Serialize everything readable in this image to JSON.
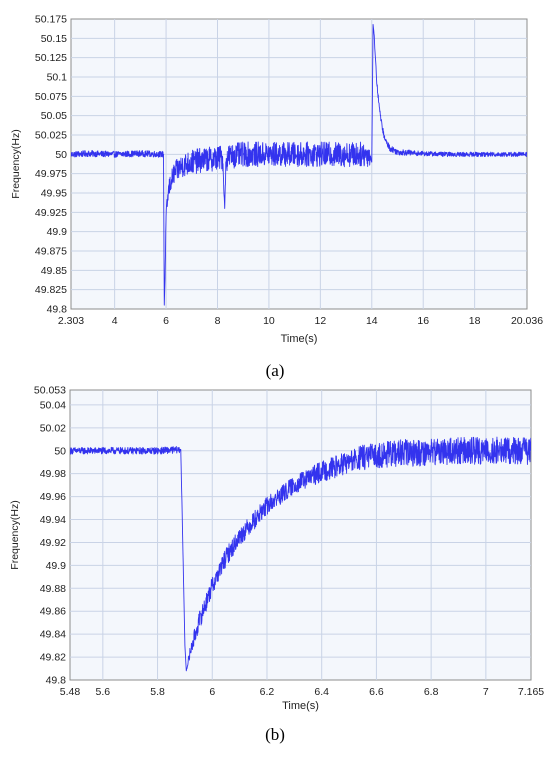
{
  "chart_data": [
    {
      "type": "line",
      "panel_label": "(a)",
      "xlabel": "Time(s)",
      "ylabel": "Frequency(Hz)",
      "xlim": [
        2.303,
        20.036
      ],
      "ylim": [
        49.8,
        50.175
      ],
      "xticks": [
        2.303,
        4,
        6,
        8,
        10,
        12,
        14,
        16,
        18,
        20.036
      ],
      "xtick_labels": [
        "2.303",
        "4",
        "6",
        "8",
        "10",
        "12",
        "14",
        "16",
        "18",
        "20.036"
      ],
      "yticks": [
        49.8,
        49.825,
        49.85,
        49.875,
        49.9,
        49.925,
        49.95,
        49.975,
        50,
        50.025,
        50.05,
        50.075,
        50.1,
        50.125,
        50.15,
        50.175
      ],
      "ytick_labels": [
        "49.8",
        "49.825",
        "49.85",
        "49.875",
        "49.9",
        "49.925",
        "49.95",
        "49.975",
        "50",
        "50.025",
        "50.05",
        "50.075",
        "50.1",
        "50.125",
        "50.15",
        "50.175"
      ],
      "grid": true,
      "series": [
        {
          "color": "#3333ee",
          "x": [
            2.303,
            3.0,
            4.0,
            5.0,
            5.9,
            5.93,
            5.96,
            6.0,
            6.1,
            6.3,
            6.6,
            7.0,
            7.5,
            8.0,
            8.2,
            8.28,
            8.33,
            8.4,
            9.0,
            10.0,
            11.0,
            12.0,
            13.0,
            13.9,
            14.0,
            14.05,
            14.1,
            14.2,
            14.35,
            14.5,
            14.7,
            15.0,
            16.0,
            17.0,
            18.0,
            19.0,
            20.036
          ],
          "y": [
            50.0,
            50.001,
            50.0,
            50.001,
            50.0,
            49.805,
            49.84,
            49.92,
            49.955,
            49.975,
            49.985,
            49.99,
            49.993,
            49.995,
            49.996,
            49.93,
            49.99,
            49.997,
            50.0,
            50.0,
            50.0,
            50.0,
            50.0,
            50.0,
            49.99,
            50.168,
            50.15,
            50.09,
            50.045,
            50.02,
            50.008,
            50.003,
            50.001,
            50.0,
            50.0,
            50.0,
            50.0
          ],
          "noise_amplitude": [
            0.004,
            0.004,
            0.004,
            0.004,
            0.004,
            0.0,
            0.004,
            0.008,
            0.012,
            0.014,
            0.015,
            0.016,
            0.016,
            0.016,
            0.016,
            0.0,
            0.016,
            0.016,
            0.016,
            0.016,
            0.016,
            0.016,
            0.016,
            0.016,
            0.0,
            0.0,
            0.004,
            0.004,
            0.004,
            0.004,
            0.004,
            0.004,
            0.003,
            0.003,
            0.003,
            0.003,
            0.003
          ]
        }
      ]
    },
    {
      "type": "line",
      "panel_label": "(b)",
      "xlabel": "Time(s)",
      "ylabel": "Frequency(Hz)",
      "xlim": [
        5.48,
        7.165
      ],
      "ylim": [
        49.8,
        50.053
      ],
      "xticks": [
        5.48,
        5.6,
        5.8,
        6,
        6.2,
        6.4,
        6.6,
        6.8,
        7,
        7.165
      ],
      "xtick_labels": [
        "5.48",
        "5.6",
        "5.8",
        "6",
        "6.2",
        "6.4",
        "6.6",
        "6.8",
        "7",
        "7.165"
      ],
      "yticks": [
        49.8,
        49.82,
        49.84,
        49.86,
        49.88,
        49.9,
        49.92,
        49.94,
        49.96,
        49.98,
        50,
        50.02,
        50.04,
        50.053
      ],
      "ytick_labels": [
        "49.8",
        "49.82",
        "49.84",
        "49.86",
        "49.88",
        "49.9",
        "49.92",
        "49.94",
        "49.96",
        "49.98",
        "50",
        "50.02",
        "50.04",
        "50.053"
      ],
      "grid": true,
      "series": [
        {
          "color": "#3333ee",
          "x": [
            5.48,
            5.6,
            5.7,
            5.8,
            5.885,
            5.9,
            5.905,
            5.92,
            5.95,
            6.0,
            6.05,
            6.1,
            6.2,
            6.3,
            6.4,
            6.5,
            6.55,
            6.6,
            6.7,
            6.8,
            6.9,
            7.0,
            7.165
          ],
          "y": [
            50.0,
            50.0,
            50.0,
            50.0,
            50.001,
            49.83,
            49.808,
            49.825,
            49.85,
            49.882,
            49.907,
            49.925,
            49.952,
            49.97,
            49.982,
            49.99,
            49.994,
            49.996,
            49.998,
            49.999,
            50.0,
            50.0,
            50.0
          ],
          "noise_amplitude": [
            0.003,
            0.003,
            0.003,
            0.003,
            0.003,
            0.0,
            0.0,
            0.006,
            0.008,
            0.008,
            0.008,
            0.008,
            0.008,
            0.008,
            0.009,
            0.01,
            0.011,
            0.011,
            0.012,
            0.012,
            0.012,
            0.012,
            0.012
          ]
        }
      ]
    }
  ]
}
